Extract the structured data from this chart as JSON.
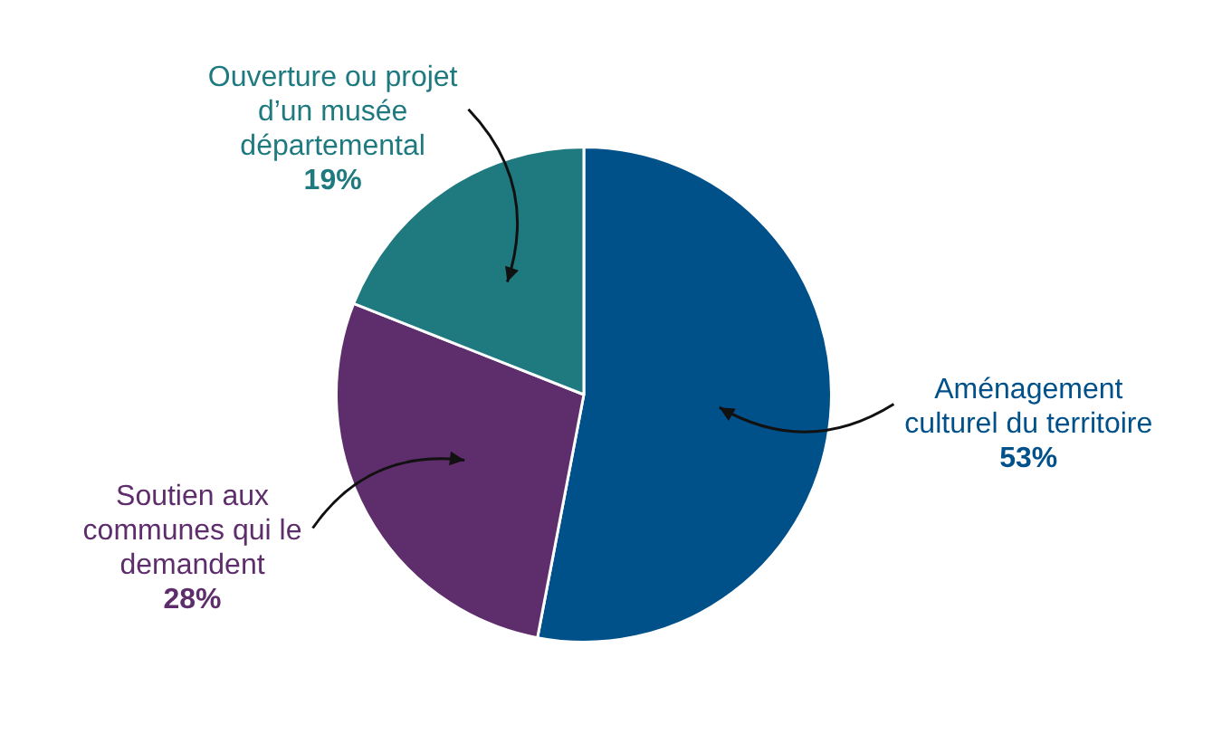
{
  "chart_data": {
    "type": "pie",
    "categories": [
      "Aménagement culturel du territoire",
      "Soutien aux communes qui le demandent",
      "Ouverture ou projet d’un musée départemental"
    ],
    "values": [
      53,
      28,
      19
    ],
    "colors": [
      "#00508a",
      "#5e2d6b",
      "#1f7a80"
    ],
    "value_labels": [
      "53%",
      "28%",
      "19%"
    ],
    "legend": false
  }
}
